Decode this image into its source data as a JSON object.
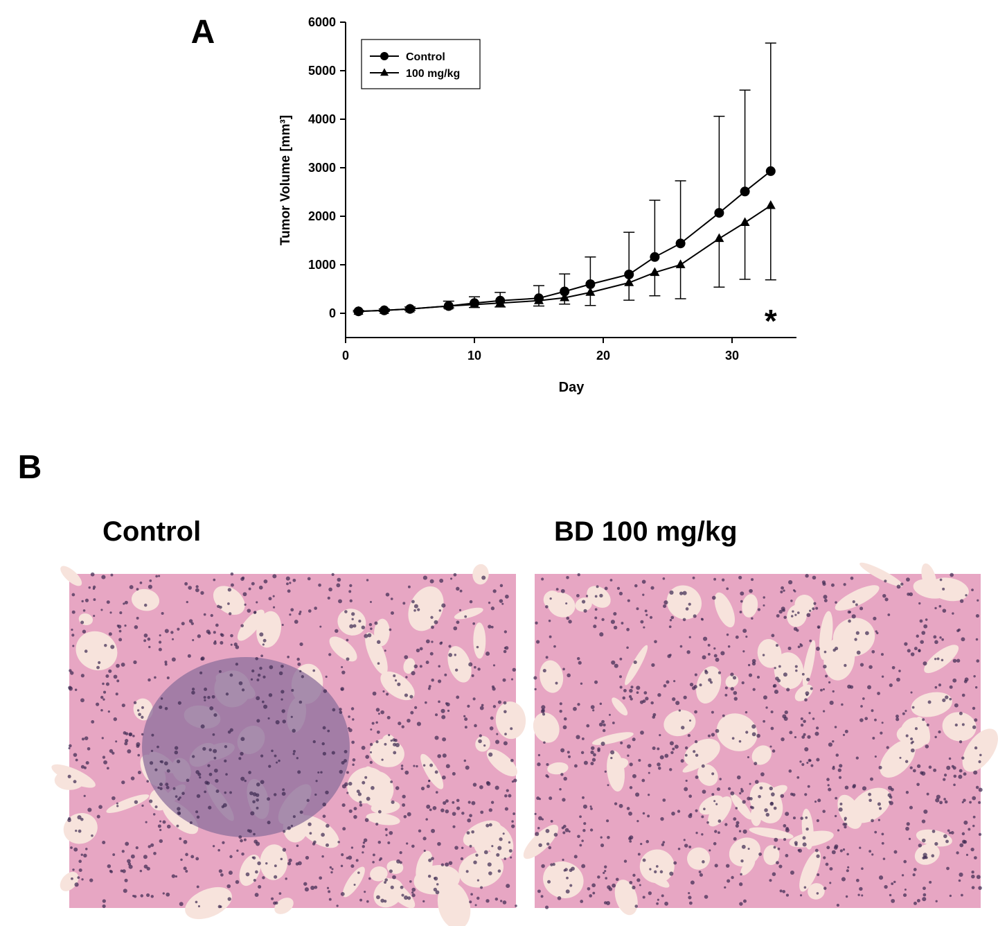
{
  "chart_data": {
    "type": "line",
    "y_label": "Tumor Volume [mm³]",
    "x_label": "Day",
    "annotation": "*",
    "x": [
      1,
      3,
      5,
      8,
      10,
      12,
      15,
      17,
      19,
      22,
      24,
      26,
      29,
      31,
      33
    ],
    "series": [
      {
        "name": "Control",
        "color": "#000000",
        "marker": "circle",
        "error_side": "up",
        "values": [
          40,
          60,
          90,
          150,
          210,
          260,
          310,
          450,
          600,
          800,
          1160,
          1440,
          2070,
          2510,
          2930
        ],
        "errors": [
          20,
          30,
          40,
          100,
          130,
          170,
          260,
          360,
          560,
          870,
          1170,
          1290,
          1990,
          2090,
          2640
        ]
      },
      {
        "name": "100 mg/kg",
        "color": "#000000",
        "marker": "triangle",
        "error_side": "down",
        "values": [
          40,
          60,
          90,
          150,
          180,
          210,
          260,
          320,
          430,
          630,
          840,
          1000,
          1540,
          1870,
          2220
        ],
        "errors": [
          10,
          20,
          30,
          40,
          60,
          80,
          110,
          130,
          270,
          360,
          480,
          700,
          1000,
          1170,
          1530
        ]
      }
    ],
    "xlim": [
      0,
      35
    ],
    "xticks": [
      0,
      10,
      20,
      30
    ],
    "ylim": [
      -500,
      6000
    ],
    "yticks": [
      0,
      1000,
      2000,
      3000,
      4000,
      5000,
      6000
    ],
    "legend": "upper left",
    "grid": false
  },
  "panels": {
    "a_label": "A",
    "b_label": "B",
    "images": [
      {
        "title": "Control"
      },
      {
        "title": "BD 100 mg/kg"
      }
    ]
  }
}
